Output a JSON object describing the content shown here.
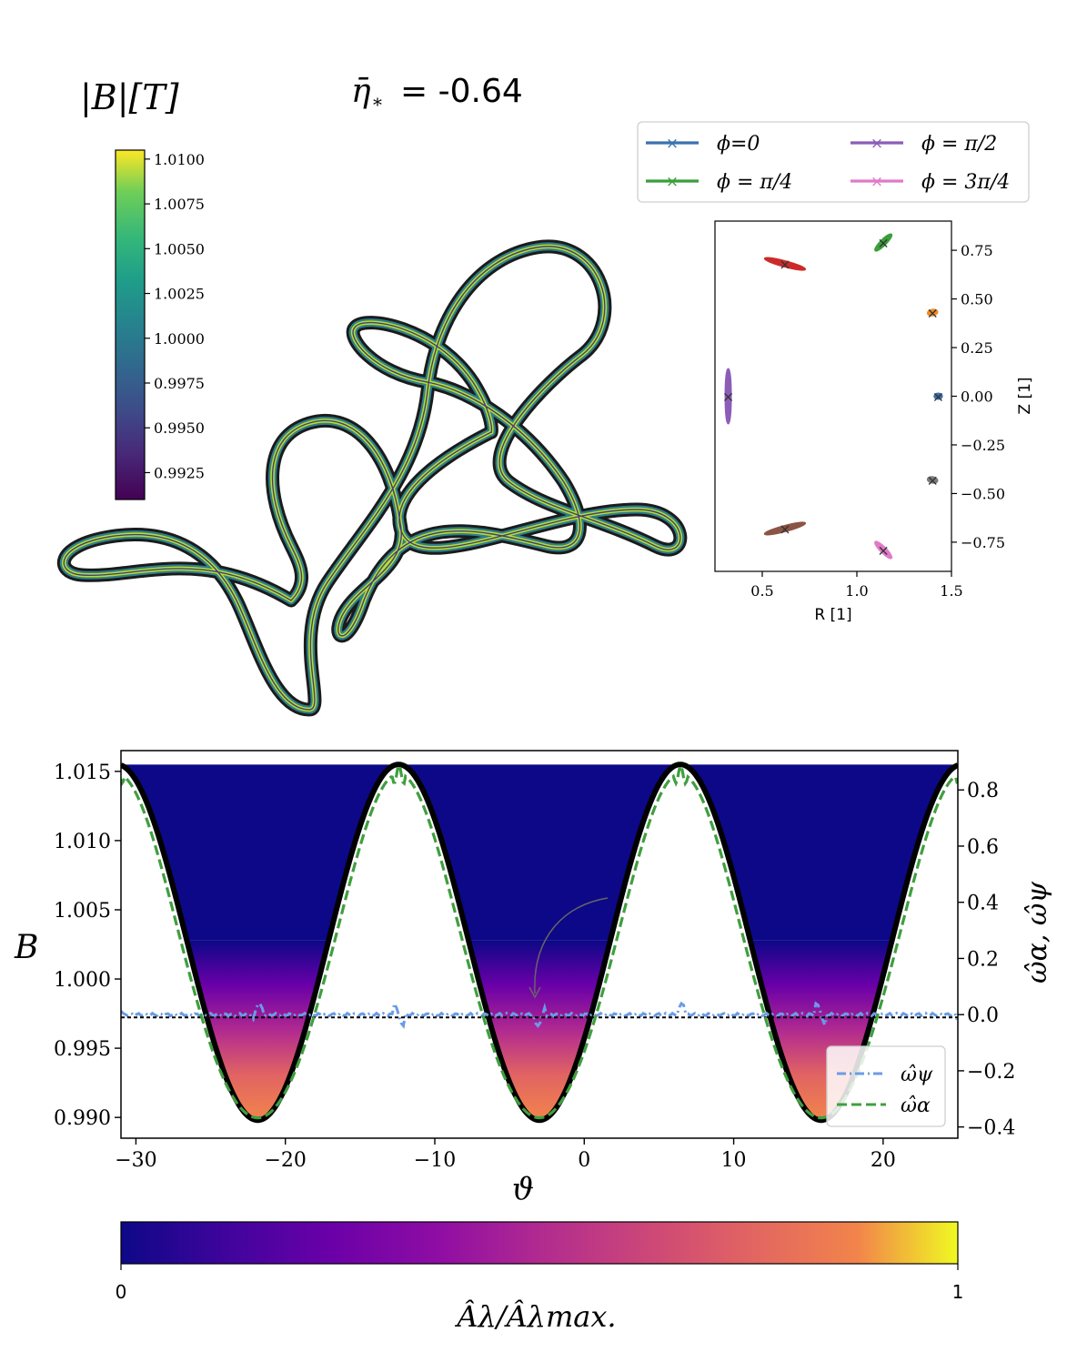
{
  "header": {
    "colorbar_title": "|B|[T]",
    "eta_label": "η̄",
    "eta_sub": "*",
    "eta_eq": "= -0.64"
  },
  "colors": {
    "phi0": "#3a72b0",
    "phi_pi4": "#3a9f3a",
    "phi_pi2": "#8c5db8",
    "phi_3pi4": "#e07ac8",
    "red": "#cc2a2a",
    "orange": "#f08a24",
    "gray": "#7b7b7b",
    "brown": "#8b5444",
    "omega_psi": "#6b9be6",
    "omega_alpha": "#3f9f3f"
  },
  "chart_data": [
    {
      "type": "colorbar",
      "id": "b_colorbar",
      "title": "|B|[T]",
      "colormap": "viridis",
      "range": [
        0.991,
        1.0105
      ],
      "ticks": [
        "1.0100",
        "1.0075",
        "1.0050",
        "1.0025",
        "1.0000",
        "0.9975",
        "0.9950",
        "0.9925"
      ],
      "tick_values": [
        1.01,
        1.0075,
        1.005,
        1.0025,
        1.0,
        0.9975,
        0.995,
        0.9925
      ]
    },
    {
      "type": "scatter",
      "id": "cross_sections",
      "xlabel": "R [1]",
      "ylabel": "Z [1]",
      "xlim": [
        0.25,
        1.5
      ],
      "ylim": [
        -0.9,
        0.9
      ],
      "xticks": [
        "0.5",
        "1.0",
        "1.5"
      ],
      "xtick_values": [
        0.5,
        1.0,
        1.5
      ],
      "yticks": [
        "0.75",
        "0.50",
        "0.25",
        "0.00",
        "−0.25",
        "−0.50",
        "−0.75"
      ],
      "ytick_values": [
        0.75,
        0.5,
        0.25,
        0.0,
        -0.25,
        -0.5,
        -0.75
      ],
      "legend_position": "top",
      "legend": [
        {
          "label": "ϕ=0",
          "color_key": "phi0"
        },
        {
          "label": "ϕ = π/2",
          "color_key": "phi_pi2"
        },
        {
          "label": "ϕ = π/4",
          "color_key": "phi_pi4"
        },
        {
          "label": "ϕ = 3π/4",
          "color_key": "phi_3pi4"
        }
      ],
      "sections": [
        {
          "color_key": "phi0",
          "center": [
            1.43,
            0.0
          ],
          "half_extent": [
            0.02,
            0.01
          ],
          "angle": 0
        },
        {
          "color_key": "phi_pi4",
          "center": [
            1.14,
            0.79
          ],
          "half_extent": [
            0.06,
            0.012
          ],
          "angle": -45
        },
        {
          "color_key": "orange",
          "center": [
            1.4,
            0.43
          ],
          "half_extent": [
            0.015,
            0.025
          ],
          "angle": 80
        },
        {
          "color_key": "red",
          "center": [
            0.62,
            0.68
          ],
          "half_extent": [
            0.11,
            0.012
          ],
          "angle": 15
        },
        {
          "color_key": "phi_pi2",
          "center": [
            0.32,
            0.0
          ],
          "half_extent": [
            0.01,
            0.14
          ],
          "angle": 0
        },
        {
          "color_key": "brown",
          "center": [
            0.62,
            -0.68
          ],
          "half_extent": [
            0.11,
            0.012
          ],
          "angle": -15
        },
        {
          "color_key": "phi_3pi4",
          "center": [
            1.14,
            -0.79
          ],
          "half_extent": [
            0.06,
            0.012
          ],
          "angle": 45
        },
        {
          "color_key": "gray",
          "center": [
            1.4,
            -0.43
          ],
          "half_extent": [
            0.015,
            0.025
          ],
          "angle": -80
        }
      ]
    },
    {
      "type": "line",
      "id": "b_vs_theta",
      "xlabel": "ϑ",
      "ylabel": "B",
      "ylabel_right": "ω̂α, ω̂ψ",
      "xlim": [
        -31,
        25
      ],
      "ylim": [
        0.9885,
        1.0165
      ],
      "ylim_right": [
        -0.44,
        0.94
      ],
      "xticks": [
        "−30",
        "−20",
        "−10",
        "0",
        "10",
        "20"
      ],
      "xtick_values": [
        -30,
        -20,
        -10,
        0,
        10,
        20
      ],
      "yticks": [
        "1.015",
        "1.010",
        "1.005",
        "1.000",
        "0.995",
        "0.990"
      ],
      "ytick_values": [
        1.015,
        1.01,
        1.005,
        1.0,
        0.995,
        0.99
      ],
      "yticks_right": [
        "0.8",
        "0.6",
        "0.4",
        "0.2",
        "0.0",
        "−0.2",
        "−0.4"
      ],
      "ytick_values_right": [
        0.8,
        0.6,
        0.4,
        0.2,
        0.0,
        -0.2,
        -0.4
      ],
      "B_curve": {
        "max": 1.0155,
        "min": 0.9898,
        "period": 18.85,
        "minima_at": [
          -21.8,
          -3.0,
          15.85
        ]
      },
      "legend_position": "lower right",
      "series": [
        {
          "name": "ω̂ψ",
          "color_key": "omega_psi",
          "style": "dashdot",
          "baseline": 0.0
        },
        {
          "name": "ω̂α",
          "color_key": "omega_alpha",
          "style": "dashed",
          "min": -0.38,
          "max": 0.87
        }
      ]
    },
    {
      "type": "colorbar",
      "id": "a_colorbar",
      "colormap": "plasma",
      "range": [
        0,
        1
      ],
      "ticks": [
        "0",
        "1"
      ],
      "label": "Âλ/Âλmax."
    }
  ]
}
